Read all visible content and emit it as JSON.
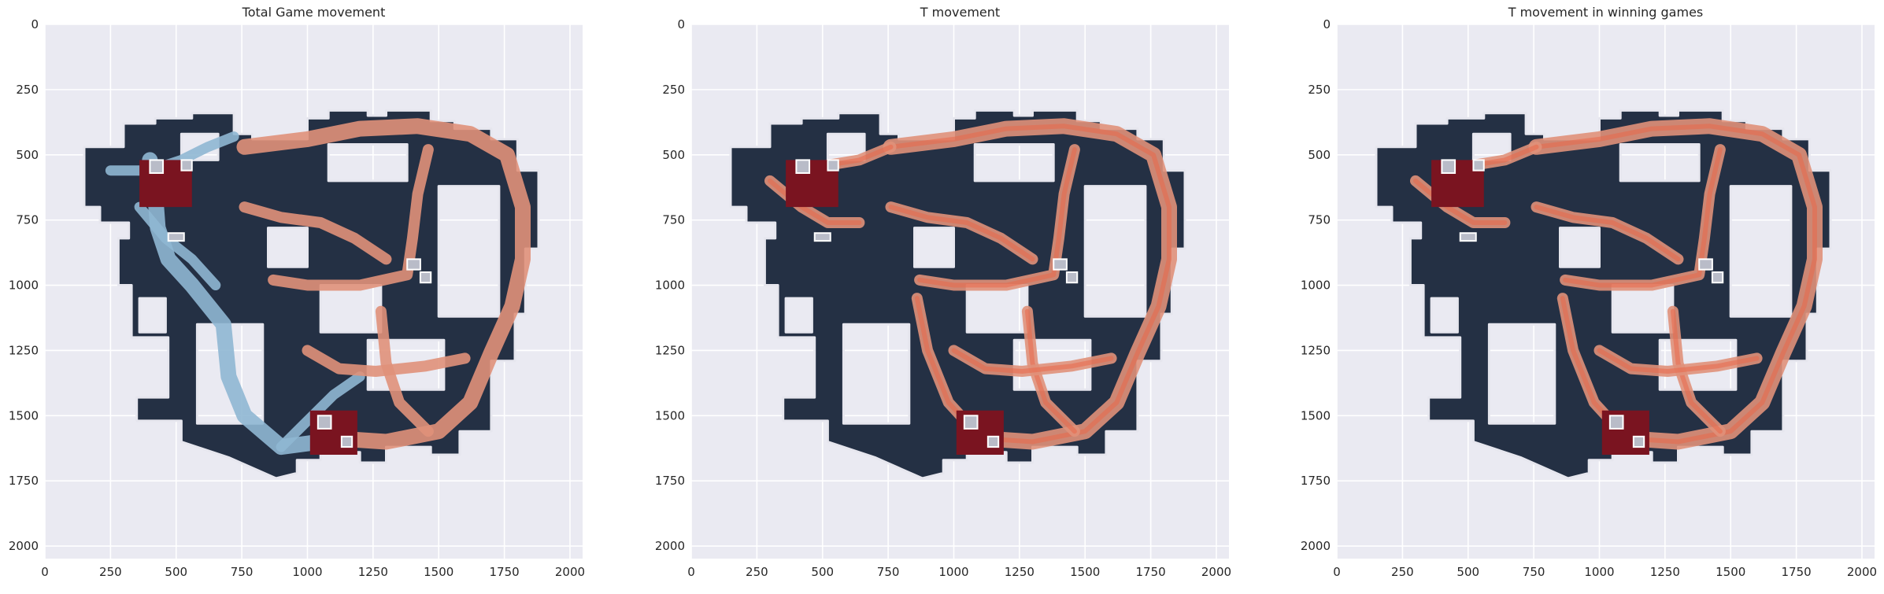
{
  "chart_data": [
    {
      "type": "heatmap",
      "title": "Total Game movement",
      "xlabel": "",
      "ylabel": "",
      "xlim": [
        0,
        2048
      ],
      "ylim": [
        2048,
        0
      ],
      "x_ticks": [
        0,
        250,
        500,
        750,
        1000,
        1250,
        1500,
        1750,
        2000
      ],
      "y_ticks": [
        0,
        250,
        500,
        750,
        1000,
        1250,
        1500,
        1750,
        2000
      ],
      "grid": true,
      "series": [
        {
          "color": "#8fb7d3"
        },
        {
          "color": "#e0917a"
        }
      ]
    },
    {
      "type": "heatmap",
      "title": "T movement",
      "xlabel": "",
      "ylabel": "",
      "xlim": [
        0,
        2048
      ],
      "ylim": [
        2048,
        0
      ],
      "x_ticks": [
        0,
        250,
        500,
        750,
        1000,
        1250,
        1500,
        1750,
        2000
      ],
      "y_ticks": [
        0,
        250,
        500,
        750,
        1000,
        1250,
        1500,
        1750,
        2000
      ],
      "grid": true,
      "series": [
        {
          "color": "#e9674a"
        }
      ]
    },
    {
      "type": "heatmap",
      "title": "T movement in winning games",
      "xlabel": "",
      "ylabel": "",
      "xlim": [
        0,
        2048
      ],
      "ylim": [
        2048,
        0
      ],
      "x_ticks": [
        0,
        250,
        500,
        750,
        1000,
        1250,
        1500,
        1750,
        2000
      ],
      "y_ticks": [
        0,
        250,
        500,
        750,
        1000,
        1250,
        1500,
        1750,
        2000
      ],
      "grid": true,
      "series": [
        {
          "color": "#e9674a"
        }
      ]
    }
  ],
  "colors": {
    "background": "#eaeaf2",
    "map": "#243044",
    "ct_path": "#8fb7d3",
    "t_path": "#e0917a",
    "bombsite": "#7a1420"
  }
}
